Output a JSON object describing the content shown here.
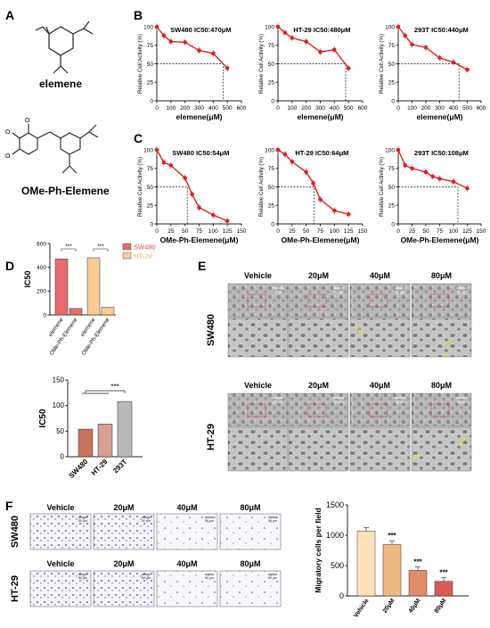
{
  "panels": {
    "A": "A",
    "B": "B",
    "C": "C",
    "D": "D",
    "E": "E",
    "F": "F",
    "A_labels": [
      "elemene",
      "OMe-Ph-Elemene"
    ]
  },
  "colors": {
    "curve": "#e0201e",
    "sw480": "#e86a6a",
    "ht29": "#f8cd94",
    "dark_red": "#a83a2a",
    "bar_sw480_d2": "#c8735c",
    "bar_ht29_d2": "#d4a090",
    "bar_293t_d2": "#b8b8b8",
    "bar_F": [
      "#fbe4b8",
      "#f0b882",
      "#e48a68",
      "#d85c55"
    ]
  },
  "micrographs": {
    "conditions": [
      "Vehicle",
      "20μM",
      "40μM",
      "80μM"
    ],
    "E_rows": [
      "SW480",
      "HT-29"
    ],
    "F_rows": [
      "SW480",
      "HT-29"
    ],
    "scale_bar": "50 μm"
  },
  "chart_data": [
    {
      "id": "B1",
      "type": "line",
      "title": "SW480 IC50:470μM",
      "xlabel": "elemene(μM)",
      "ylabel": "Relative Cell Activity (%)",
      "xlim": [
        0,
        600
      ],
      "ylim": [
        0,
        100
      ],
      "xticks": [
        0,
        100,
        200,
        300,
        400,
        500,
        600
      ],
      "yticks": [
        0,
        25,
        50,
        75,
        100
      ],
      "x": [
        0,
        50,
        100,
        200,
        300,
        400,
        500
      ],
      "y": [
        100,
        88,
        80,
        79,
        68,
        64,
        44
      ],
      "ic50": 470
    },
    {
      "id": "B2",
      "type": "line",
      "title": "HT-29 IC50:480μM",
      "xlabel": "elemene(μM)",
      "ylabel": "Relative Cell Activity (%)",
      "xlim": [
        0,
        600
      ],
      "ylim": [
        0,
        100
      ],
      "xticks": [
        0,
        100,
        200,
        300,
        400,
        500,
        600
      ],
      "yticks": [
        0,
        25,
        50,
        75,
        100
      ],
      "x": [
        0,
        50,
        100,
        200,
        300,
        400,
        500
      ],
      "y": [
        100,
        92,
        85,
        80,
        66,
        69,
        44
      ],
      "ic50": 480
    },
    {
      "id": "B3",
      "type": "line",
      "title": "293T IC50:440μM",
      "xlabel": "elemene(μM)",
      "ylabel": "Relative Cell Activity (%)",
      "xlim": [
        0,
        600
      ],
      "ylim": [
        0,
        100
      ],
      "xticks": [
        0,
        100,
        200,
        300,
        400,
        500,
        600
      ],
      "yticks": [
        0,
        25,
        50,
        75,
        100
      ],
      "x": [
        0,
        50,
        100,
        200,
        300,
        400,
        500
      ],
      "y": [
        100,
        88,
        76,
        72,
        58,
        52,
        42
      ],
      "ic50": 440
    },
    {
      "id": "C1",
      "type": "line",
      "title": "SW480 IC50:54μM",
      "xlabel": "OMe-Ph-Elemene(μM)",
      "ylabel": "Relative Cell Activity (%)",
      "xlim": [
        0,
        150
      ],
      "ylim": [
        0,
        100
      ],
      "xticks": [
        0,
        25,
        50,
        75,
        100,
        125,
        150
      ],
      "yticks": [
        0,
        25,
        50,
        75,
        100
      ],
      "x": [
        0,
        12.5,
        25,
        50,
        62.5,
        75,
        100,
        125
      ],
      "y": [
        100,
        83,
        79,
        62,
        40,
        22,
        12,
        4
      ],
      "ic50": 54
    },
    {
      "id": "C2",
      "type": "line",
      "title": "HT-29 IC50:64μM",
      "xlabel": "OMe-Ph-Elemene(μM)",
      "ylabel": "Relative Cell Activity (%)",
      "xlim": [
        0,
        150
      ],
      "ylim": [
        0,
        100
      ],
      "xticks": [
        0,
        25,
        50,
        75,
        100,
        125,
        150
      ],
      "yticks": [
        0,
        25,
        50,
        75,
        100
      ],
      "x": [
        0,
        12.5,
        25,
        50,
        62.5,
        75,
        100,
        125
      ],
      "y": [
        100,
        94,
        84,
        70,
        55,
        33,
        18,
        13
      ],
      "ic50": 64
    },
    {
      "id": "C3",
      "type": "line",
      "title": "293T IC50:108μM",
      "xlabel": "OMe-Ph-Elemene(μM)",
      "ylabel": "Relative Cell Activity (%)",
      "xlim": [
        0,
        150
      ],
      "ylim": [
        0,
        100
      ],
      "xticks": [
        0,
        25,
        50,
        75,
        100,
        125,
        150
      ],
      "yticks": [
        0,
        25,
        50,
        75,
        100
      ],
      "x": [
        0,
        12.5,
        25,
        50,
        62.5,
        75,
        100,
        125
      ],
      "y": [
        100,
        79,
        75,
        70,
        64,
        61,
        57,
        48
      ],
      "ic50": 108
    },
    {
      "id": "D1",
      "type": "bar",
      "ylabel": "IC50",
      "ylim": [
        0,
        600
      ],
      "yticks": [
        0,
        200,
        400,
        600
      ],
      "categories": [
        "elemene",
        "OMe-Ph-Elemene",
        "elemene",
        "OMe-Ph-Elemene"
      ],
      "values": [
        470,
        54,
        480,
        64
      ],
      "groups": [
        "SW480",
        "SW480",
        "HT-29",
        "HT-29"
      ],
      "legend": [
        "SW480",
        "HT-29"
      ],
      "significance": [
        "***",
        "***"
      ]
    },
    {
      "id": "D2",
      "type": "bar",
      "ylabel": "IC50",
      "ylim": [
        0,
        150
      ],
      "yticks": [
        0,
        50,
        100,
        150
      ],
      "categories": [
        "SW480",
        "HT-29",
        "293T"
      ],
      "values": [
        54,
        64,
        108
      ],
      "significance": [
        "***"
      ]
    },
    {
      "id": "F2",
      "type": "bar",
      "ylabel": "Migratory cells per field",
      "ylim": [
        0,
        1500
      ],
      "yticks": [
        0,
        500,
        1000,
        1500
      ],
      "categories": [
        "Vehicle",
        "20μM",
        "40μM",
        "80μM"
      ],
      "values": [
        1070,
        850,
        420,
        240
      ],
      "significance": [
        "",
        "***",
        "***",
        "***"
      ]
    }
  ]
}
